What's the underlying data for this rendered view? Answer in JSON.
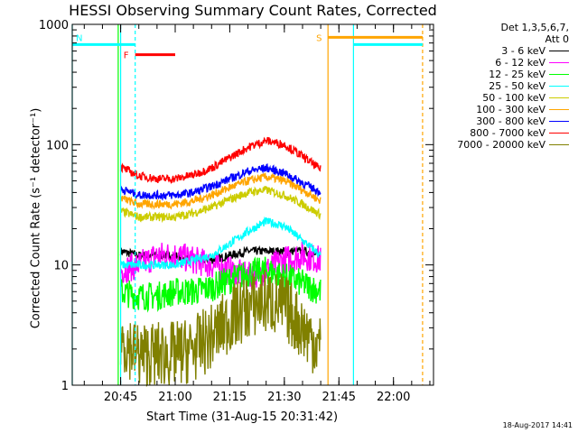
{
  "chart_data": {
    "type": "line",
    "title": "HESSI Observing Summary Count Rates, Corrected",
    "xlabel": "Start Time (31-Aug-15 20:31:42)",
    "ylabel": "Corrected Count Rate (s⁻¹ detector⁻¹)",
    "xlim": [
      "20:31:42",
      "22:11:00"
    ],
    "ylim": [
      1,
      1000
    ],
    "yscale": "log",
    "x_ticks": [
      "20:45",
      "21:00",
      "21:15",
      "21:30",
      "21:45",
      "22:00"
    ],
    "y_ticks": [
      "1",
      "10",
      "100",
      "1000"
    ],
    "legend_header": [
      "Det 1,3,5,6,7,",
      "Att 0"
    ],
    "legend_position": "top-right outside",
    "series": [
      {
        "name": "3 - 6 keV",
        "color": "#000000",
        "x": [
          "20:45",
          "20:50",
          "20:55",
          "21:00",
          "21:05",
          "21:10",
          "21:15",
          "21:20",
          "21:25",
          "21:30",
          "21:35",
          "21:40"
        ],
        "y": [
          13,
          12,
          12,
          12,
          11,
          11,
          12,
          13,
          13,
          13,
          13,
          12
        ]
      },
      {
        "name": "6 - 12 keV",
        "color": "#ff00ff",
        "x": [
          "20:45",
          "20:50",
          "20:55",
          "21:00",
          "21:05",
          "21:10",
          "21:15",
          "21:20",
          "21:25",
          "21:30",
          "21:35",
          "21:40"
        ],
        "y": [
          9,
          10,
          12,
          12,
          11,
          10,
          9,
          8,
          9,
          11,
          12,
          11
        ]
      },
      {
        "name": "12 - 25 keV",
        "color": "#00ff00",
        "x": [
          "20:45",
          "20:50",
          "20:55",
          "21:00",
          "21:05",
          "21:10",
          "21:15",
          "21:20",
          "21:25",
          "21:30",
          "21:35",
          "21:40"
        ],
        "y": [
          6,
          5.5,
          5.5,
          6,
          6,
          6.5,
          7.5,
          8.5,
          9,
          8,
          7,
          6
        ]
      },
      {
        "name": "25 - 50 keV",
        "color": "#00ffff",
        "x": [
          "20:45",
          "20:50",
          "20:55",
          "21:00",
          "21:05",
          "21:10",
          "21:15",
          "21:20",
          "21:25",
          "21:30",
          "21:35",
          "21:40"
        ],
        "y": [
          10,
          10,
          10,
          10,
          11,
          12,
          15,
          19,
          23,
          21,
          16,
          12
        ]
      },
      {
        "name": "50 - 100 keV",
        "color": "#cccc00",
        "x": [
          "20:45",
          "20:50",
          "20:55",
          "21:00",
          "21:05",
          "21:10",
          "21:15",
          "21:20",
          "21:25",
          "21:30",
          "21:35",
          "21:40"
        ],
        "y": [
          28,
          25,
          25,
          25,
          27,
          30,
          35,
          40,
          42,
          38,
          32,
          26
        ]
      },
      {
        "name": "100 - 300 keV",
        "color": "#ffa500",
        "x": [
          "20:45",
          "20:50",
          "20:55",
          "21:00",
          "21:05",
          "21:10",
          "21:15",
          "21:20",
          "21:25",
          "21:30",
          "21:35",
          "21:40"
        ],
        "y": [
          36,
          32,
          32,
          32,
          34,
          38,
          44,
          50,
          54,
          50,
          42,
          34
        ]
      },
      {
        "name": "300 - 800 keV",
        "color": "#0000ff",
        "x": [
          "20:45",
          "20:50",
          "20:55",
          "21:00",
          "21:05",
          "21:10",
          "21:15",
          "21:20",
          "21:25",
          "21:30",
          "21:35",
          "21:40"
        ],
        "y": [
          43,
          38,
          38,
          38,
          40,
          45,
          52,
          60,
          64,
          58,
          48,
          40
        ]
      },
      {
        "name": "800 - 7000 keV",
        "color": "#ff0000",
        "x": [
          "20:45",
          "20:50",
          "20:55",
          "21:00",
          "21:05",
          "21:10",
          "21:15",
          "21:20",
          "21:25",
          "21:30",
          "21:35",
          "21:40"
        ],
        "y": [
          65,
          55,
          52,
          52,
          56,
          64,
          78,
          95,
          108,
          100,
          80,
          62
        ]
      },
      {
        "name": "7000 - 20000 keV",
        "color": "#808000",
        "x": [
          "20:45",
          "20:50",
          "20:55",
          "21:00",
          "21:05",
          "21:10",
          "21:15",
          "21:20",
          "21:25",
          "21:30",
          "21:35",
          "21:40"
        ],
        "y": [
          2.5,
          1.8,
          1.8,
          1.8,
          2,
          2.5,
          3.5,
          4.5,
          5,
          4.5,
          3,
          2
        ]
      }
    ],
    "flag_bars": [
      {
        "label": "N",
        "color": "#00ffff",
        "x_start": "20:31:42",
        "x_end": "20:49:00",
        "y": 680
      },
      {
        "label": "F",
        "color": "#ff0000",
        "x_start": "20:49:00",
        "x_end": "21:00:00",
        "y": 560
      },
      {
        "label": "S",
        "color": "#ffa500",
        "x_start": "21:42:00",
        "x_end": "22:08:00",
        "y": 780
      },
      {
        "label": "",
        "color": "#00ffff",
        "x_start": "21:49:00",
        "x_end": "22:08:00",
        "y": 680
      }
    ],
    "vertical_lines": [
      {
        "x": "20:31:42",
        "color": "#00ffff",
        "style": "solid"
      },
      {
        "x": "20:45:00",
        "color": "#00ffff",
        "style": "solid"
      },
      {
        "x": "20:44:20",
        "color": "#00ff00",
        "style": "solid"
      },
      {
        "x": "20:49:00",
        "color": "#00ffff",
        "style": "dashed"
      },
      {
        "x": "21:42:00",
        "color": "#ffa500",
        "style": "solid"
      },
      {
        "x": "21:49:00",
        "color": "#00ffff",
        "style": "solid"
      },
      {
        "x": "22:08:00",
        "color": "#ffa500",
        "style": "dashed"
      }
    ],
    "grid": false
  },
  "footer": {
    "timestamp": "18-Aug-2017 14:41"
  }
}
